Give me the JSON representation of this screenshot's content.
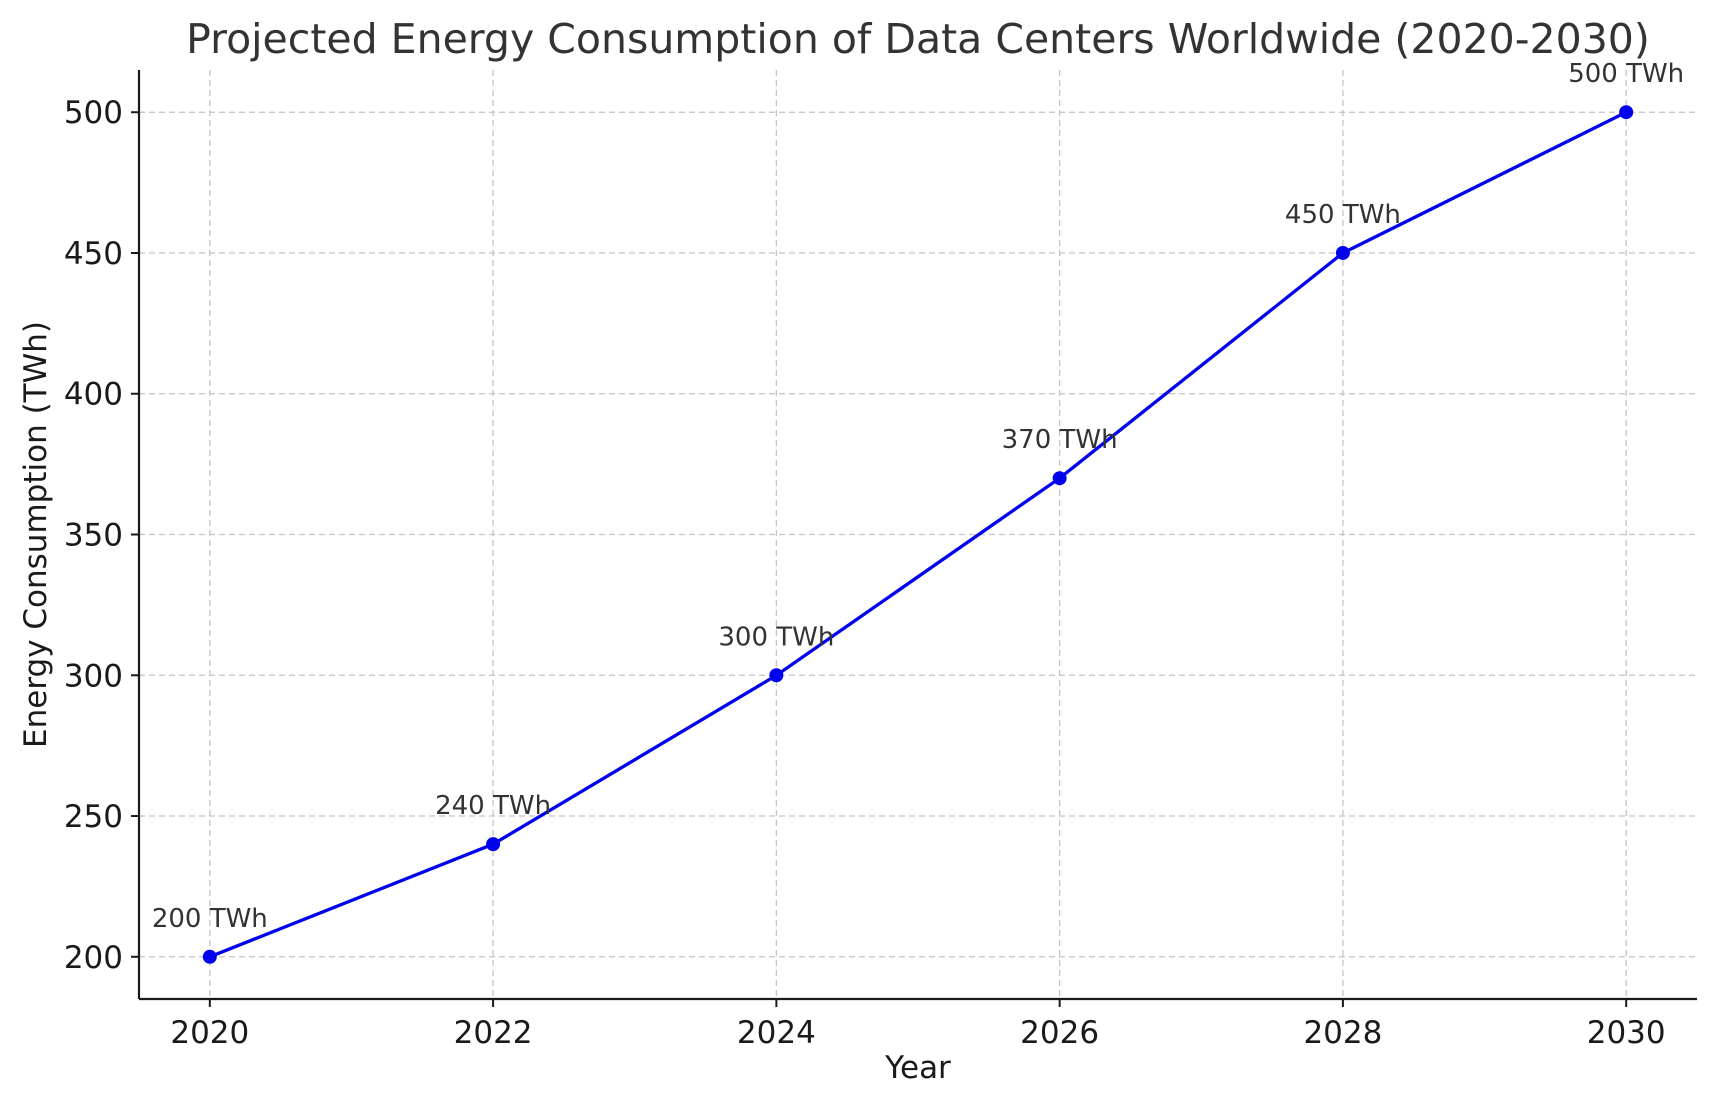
{
  "chart_data": {
    "type": "line",
    "title": "Projected Energy Consumption of Data Centers Worldwide (2020-2030)",
    "xlabel": "Year",
    "ylabel": "Energy Consumption (TWh)",
    "x": [
      2020,
      2022,
      2024,
      2026,
      2028,
      2030
    ],
    "xticks": [
      "2020",
      "2022",
      "2024",
      "2026",
      "2028",
      "2030"
    ],
    "yticks": [
      "200",
      "250",
      "300",
      "350",
      "400",
      "450",
      "500"
    ],
    "xlim": [
      2019.5,
      2030.5
    ],
    "ylim": [
      185,
      515
    ],
    "grid": true,
    "series": [
      {
        "values": [
          200,
          240,
          300,
          370,
          450,
          500
        ],
        "color": "#0000ee",
        "marker": "circle",
        "data_labels": [
          "200 TWh",
          "240 TWh",
          "300 TWh",
          "370 TWh",
          "450 TWh",
          "500 TWh"
        ]
      }
    ]
  }
}
